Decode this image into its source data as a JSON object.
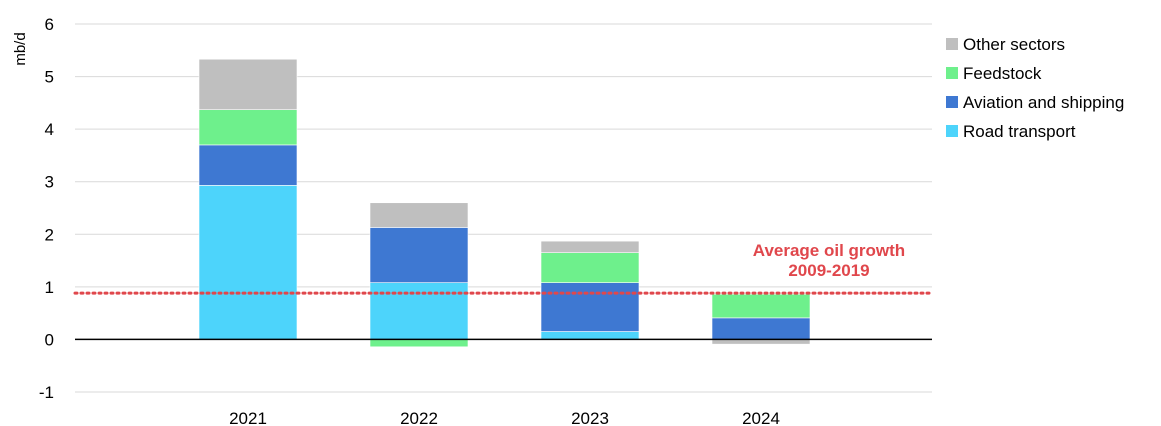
{
  "chart_data": {
    "type": "bar",
    "stacked": true,
    "ylabel": "mb/d",
    "ylim": [
      -1,
      6
    ],
    "yticks": [
      -1,
      0,
      1,
      2,
      3,
      4,
      5,
      6
    ],
    "grid": true,
    "legend_position": "right",
    "categories": [
      "2021",
      "2022",
      "2023",
      "2024"
    ],
    "series": [
      {
        "name": "Road transport",
        "color": "#4dd4fb",
        "values": [
          2.93,
          1.08,
          0.15,
          0.0
        ]
      },
      {
        "name": "Aviation and shipping",
        "color": "#3e78d2",
        "values": [
          0.77,
          1.05,
          0.93,
          0.41
        ]
      },
      {
        "name": "Feedstock",
        "color": "#6ef08c",
        "values": [
          0.67,
          -0.14,
          0.57,
          0.45
        ]
      },
      {
        "name": "Other sectors",
        "color": "#bfbfbf",
        "values": [
          0.96,
          0.47,
          0.22,
          -0.09
        ]
      }
    ],
    "reference_line": {
      "value": 0.88,
      "color": "#e0474c",
      "label_lines": [
        "Average oil growth",
        "2009-2019"
      ]
    }
  }
}
